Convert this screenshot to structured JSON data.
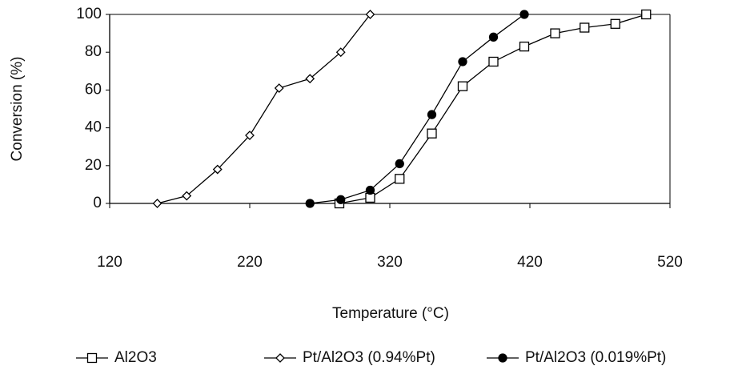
{
  "chart_data": {
    "type": "line",
    "x_label": "Temperature (°C)",
    "y_label": "Conversion (%)",
    "xlim": [
      120,
      520
    ],
    "xticks": [
      120,
      220,
      320,
      420,
      520
    ],
    "ylim": [
      0,
      100
    ],
    "yticks": [
      0,
      20,
      40,
      60,
      80,
      100
    ],
    "grid": false,
    "legend": "bottom",
    "series": [
      {
        "name": "Al2O3",
        "color": "#000000",
        "marker": "square",
        "filled": false,
        "x": [
          284,
          306,
          327,
          350,
          372,
          394,
          416,
          438,
          459,
          481,
          503
        ],
        "values": [
          0,
          3,
          13,
          37,
          62,
          75,
          83,
          90,
          93,
          95,
          100
        ]
      },
      {
        "name": "Pt/Al2O3 (0.94%Pt)",
        "color": "#000000",
        "marker": "diamond",
        "filled": false,
        "x": [
          154,
          175,
          197,
          220,
          241,
          263,
          285,
          306
        ],
        "values": [
          0,
          4,
          18,
          36,
          61,
          66,
          80,
          100
        ]
      },
      {
        "name": "Pt/Al2O3 (0.019%Pt)",
        "color": "#000000",
        "marker": "circle",
        "filled": true,
        "x": [
          263,
          285,
          306,
          327,
          350,
          372,
          394,
          416
        ],
        "values": [
          0,
          2,
          7,
          21,
          47,
          75,
          88,
          100
        ]
      }
    ]
  }
}
